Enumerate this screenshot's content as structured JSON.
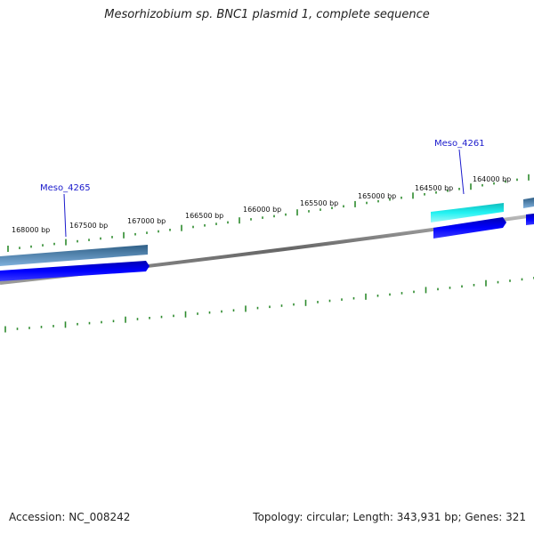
{
  "title": "Mesorhizobium sp. BNC1 plasmid 1, complete sequence",
  "footer": {
    "accession": "Accession: NC_008242",
    "summary": "Topology: circular; Length: 343,931 bp; Genes: 321"
  },
  "ticks": [
    "168000 bp",
    "167500 bp",
    "167000 bp",
    "166500 bp",
    "166000 bp",
    "165500 bp",
    "165000 bp",
    "164500 bp",
    "164000 bp"
  ],
  "genes": [
    {
      "label": "Meso_4265"
    },
    {
      "label": "Meso_4261"
    }
  ],
  "colors": {
    "backbone": "#777777",
    "tick": "#2e8b2e",
    "gene_outer_dark": "#3a6e99",
    "gene_outer_light": "#6fa3d0",
    "gene_blue": "#0000ee",
    "gene_cyan": "#19e6e6",
    "label": "#1a1acc"
  }
}
